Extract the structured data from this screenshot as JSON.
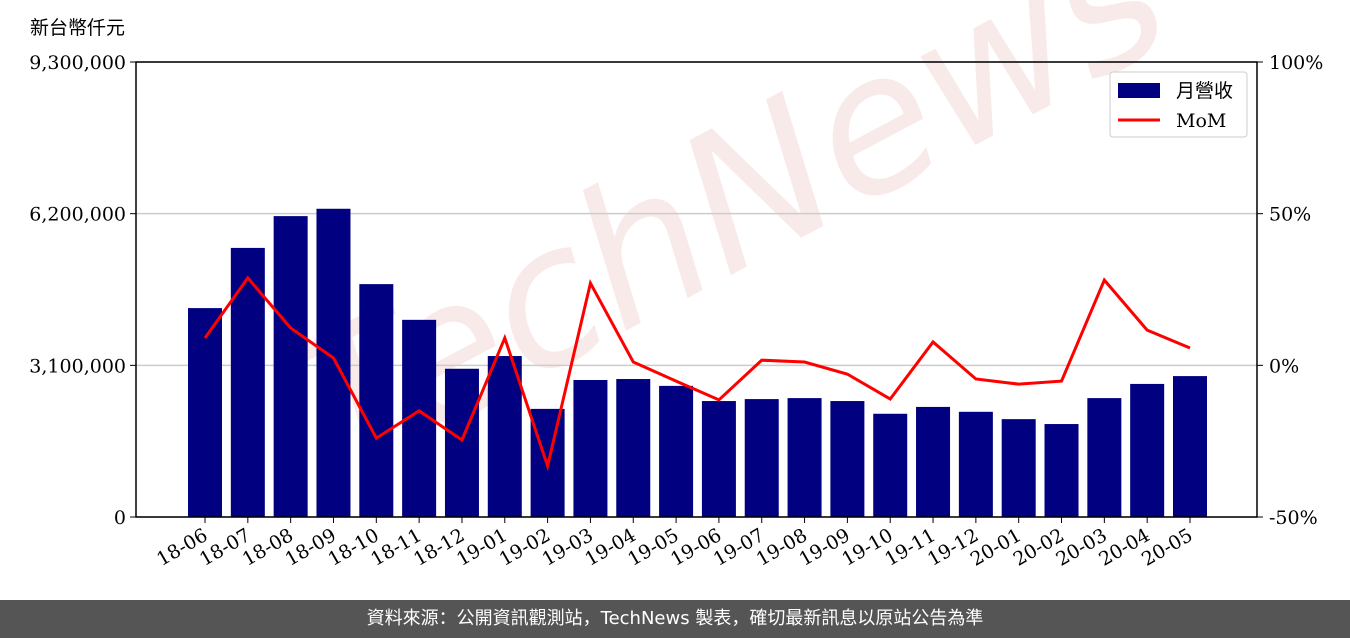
{
  "chart_data": {
    "type": "bar_line",
    "y_axis_label": "新台幣仟元",
    "watermark": "TechNews",
    "footer": "資料來源：公開資訊觀測站，TechNews 製表，確切最新訊息以原站公告為準",
    "categories": [
      "18-06",
      "18-07",
      "18-08",
      "18-09",
      "18-10",
      "18-11",
      "18-12",
      "19-01",
      "19-02",
      "19-03",
      "19-04",
      "19-05",
      "19-06",
      "19-07",
      "19-08",
      "19-09",
      "19-10",
      "19-11",
      "19-12",
      "20-01",
      "20-02",
      "20-03",
      "20-04",
      "20-05"
    ],
    "series": [
      {
        "name": "月營收",
        "type": "bar",
        "color": "#000080",
        "values": [
          4270000,
          5500000,
          6150000,
          6300000,
          4760000,
          4030000,
          3030000,
          3290000,
          2210000,
          2800000,
          2820000,
          2680000,
          2370000,
          2410000,
          2430000,
          2370000,
          2110000,
          2250000,
          2150000,
          2000000,
          1900000,
          2430000,
          2720000,
          2880000
        ]
      },
      {
        "name": "MoM",
        "type": "line",
        "color": "#ff0000",
        "axis": "y2",
        "values": [
          9.0,
          28.8,
          12.3,
          2.4,
          -24.0,
          -15.0,
          -24.6,
          9.0,
          -33.2,
          27.1,
          1.1,
          -5.2,
          -11.4,
          1.7,
          1.1,
          -2.9,
          -11.1,
          7.7,
          -4.5,
          -6.2,
          -5.2,
          28.1,
          11.6,
          5.7
        ]
      }
    ],
    "ylim": [
      0,
      9300000
    ],
    "yticks": [
      0,
      {
        "value": 3100000,
        "label": "3,100,000"
      },
      {
        "value": 6200000,
        "label": "6,200,000"
      },
      {
        "value": 9300000,
        "label": "9,300,000"
      }
    ],
    "y2lim": [
      -50,
      100
    ],
    "y2ticks": [
      {
        "value": -50,
        "label": "-50%"
      },
      {
        "value": 0,
        "label": "0%"
      },
      {
        "value": 50,
        "label": "50%"
      },
      {
        "value": 100,
        "label": "100%"
      }
    ],
    "grid": true,
    "legend": "upper right"
  }
}
